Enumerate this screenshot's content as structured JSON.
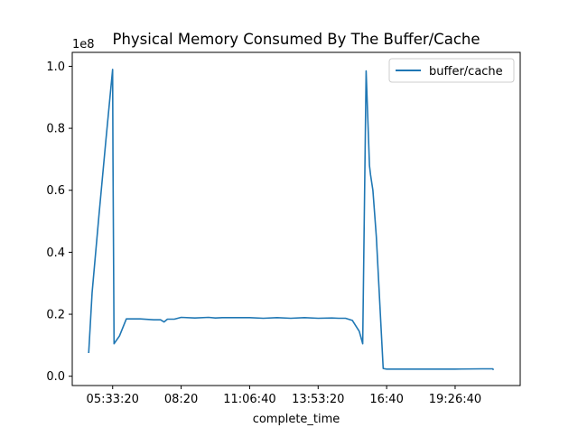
{
  "chart_data": {
    "type": "line",
    "title": "Physical Memory Consumed By The Buffer/Cache",
    "xlabel": "complete_time",
    "ylabel": "",
    "y_scale_label": "1e8",
    "x_tick_labels": [
      "05:33:20",
      "08:20",
      "11:06:40",
      "13:53:20",
      "16:40",
      "19:26:40"
    ],
    "x_ticks_seconds": [
      20000,
      30000,
      40000,
      50000,
      60000,
      70000
    ],
    "y_ticks": [
      0.0,
      0.2,
      0.4,
      0.6,
      0.8,
      1.0
    ],
    "y_tick_labels": [
      "0.0",
      "0.2",
      "0.4",
      "0.6",
      "0.8",
      "1.0"
    ],
    "xlim_seconds": [
      14100,
      79500
    ],
    "ylim": [
      -0.03,
      1.045
    ],
    "legend": "top-right",
    "grid": false,
    "series": [
      {
        "name": "buffer/cache",
        "color": "#1f77b4",
        "x_seconds": [
          16500,
          17000,
          18000,
          19000,
          20000,
          20050,
          20200,
          21000,
          22000,
          24000,
          26000,
          27000,
          27500,
          28000,
          29000,
          30000,
          32000,
          34000,
          35000,
          36000,
          38000,
          40000,
          42000,
          44000,
          46000,
          48000,
          50000,
          52000,
          53000,
          54000,
          55000,
          56000,
          56500,
          57000,
          57500,
          57650,
          58000,
          58500,
          59500,
          60000,
          62000,
          66000,
          70000,
          74000,
          75000,
          75500,
          75600
        ],
        "values": [
          0.075,
          0.27,
          0.52,
          0.76,
          0.99,
          0.7,
          0.105,
          0.13,
          0.185,
          0.185,
          0.182,
          0.182,
          0.175,
          0.184,
          0.184,
          0.19,
          0.188,
          0.19,
          0.188,
          0.189,
          0.189,
          0.189,
          0.187,
          0.189,
          0.187,
          0.189,
          0.187,
          0.188,
          0.187,
          0.187,
          0.18,
          0.145,
          0.105,
          0.985,
          0.68,
          0.65,
          0.6,
          0.45,
          0.025,
          0.023,
          0.023,
          0.023,
          0.023,
          0.024,
          0.024,
          0.024,
          0.02
        ]
      }
    ]
  }
}
